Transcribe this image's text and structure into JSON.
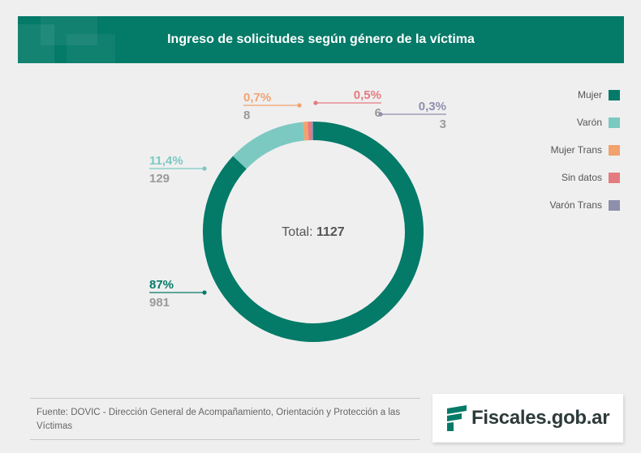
{
  "header": {
    "title": "Ingreso de solicitudes según género de la víctima"
  },
  "chart_data": {
    "type": "pie",
    "donut": true,
    "title": "Ingreso de solicitudes según género de la víctima",
    "center_label": "Total:",
    "center_value": "1127",
    "total": 1127,
    "legend_position": "top-right",
    "series": [
      {
        "name": "Mujer",
        "value": 981,
        "percent": "87%",
        "color": "#047a68"
      },
      {
        "name": "Varón",
        "value": 129,
        "percent": "11,4%",
        "color": "#7cc9c2"
      },
      {
        "name": "Mujer Trans",
        "value": 8,
        "percent": "0,7%",
        "color": "#f2a26e"
      },
      {
        "name": "Sin datos",
        "value": 6,
        "percent": "0,5%",
        "color": "#e47b80"
      },
      {
        "name": "Varón Trans",
        "value": 3,
        "percent": "0,3%",
        "color": "#8e8fac"
      }
    ]
  },
  "source": {
    "text": "Fuente: DOVIC - Dirección General de Acompañamiento, Orientación y Protección a las Víctimas"
  },
  "logo": {
    "text": "Fiscales.gob.ar",
    "icon": "fiscales-logo-icon",
    "color": "#047a68"
  }
}
